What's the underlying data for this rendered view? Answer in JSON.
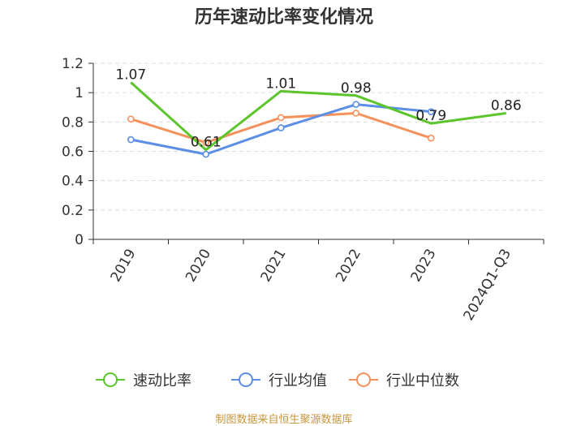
{
  "chart_data": {
    "type": "line",
    "title": "历年速动比率变化情况",
    "categories": [
      "2019",
      "2020",
      "2021",
      "2022",
      "2023",
      "2024Q1-Q3"
    ],
    "ylim": [
      0,
      1.2
    ],
    "yticks": [
      "0",
      "0.2",
      "0.4",
      "0.6",
      "0.8",
      "1",
      "1.2"
    ],
    "ytick_values": [
      0,
      0.2,
      0.4,
      0.6,
      0.8,
      1.0,
      1.2
    ],
    "grid": true,
    "legend_position": "bottom",
    "series": [
      {
        "name": "速动比率",
        "color": "#5bc52b",
        "values": [
          1.07,
          0.61,
          1.01,
          0.98,
          0.79,
          0.86
        ],
        "labels": [
          "1.07",
          "0.61",
          "1.01",
          "0.98",
          "0.79",
          "0.86"
        ]
      },
      {
        "name": "行业均值",
        "color": "#5b8ee6",
        "values": [
          0.68,
          0.58,
          0.76,
          0.92,
          0.87,
          null
        ]
      },
      {
        "name": "行业中位数",
        "color": "#f5915a",
        "values": [
          0.82,
          0.66,
          0.83,
          0.86,
          0.69,
          null
        ]
      }
    ],
    "source": "制图数据来自恒生聚源数据库"
  }
}
